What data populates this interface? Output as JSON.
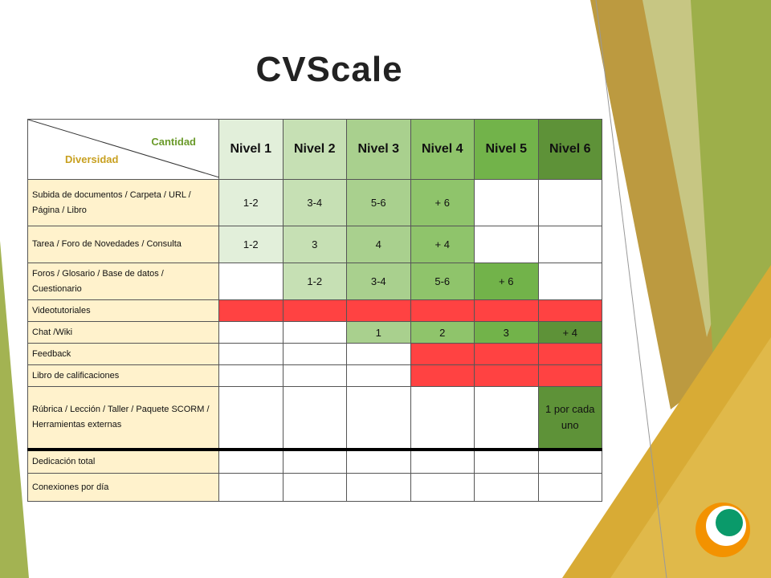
{
  "title": "CVScale",
  "table": {
    "corner": {
      "top": "Cantidad",
      "bottom": "Diversidad"
    },
    "columns": [
      "Nivel 1",
      "Nivel 2",
      "Nivel 3",
      "Nivel 4",
      "Nivel 5",
      "Nivel 6"
    ],
    "column_colors": [
      "#e2efda",
      "#c6e0b4",
      "#a9d08e",
      "#8fc46b",
      "#72b34a",
      "#5e9238"
    ],
    "rows": [
      {
        "label": "Subida de documentos / Carpeta / URL / Página / Libro",
        "cells": [
          "1-2",
          "3-4",
          "5-6",
          "+ 6",
          null,
          null
        ],
        "colors": [
          "#e2efda",
          "#c6e0b4",
          "#a9d08e",
          "#8fc46b",
          null,
          null
        ]
      },
      {
        "label": "Tarea / Foro de Novedades / Consulta",
        "cells": [
          "1-2",
          "3",
          "4",
          "+ 4",
          null,
          null
        ],
        "colors": [
          "#e2efda",
          "#c6e0b4",
          "#a9d08e",
          "#8fc46b",
          null,
          null
        ]
      },
      {
        "label": "Foros / Glosario / Base de datos / Cuestionario",
        "cells": [
          null,
          "1-2",
          "3-4",
          "5-6",
          "+ 6",
          null
        ],
        "colors": [
          null,
          "#c6e0b4",
          "#a9d08e",
          "#8fc46b",
          "#72b34a",
          null
        ]
      },
      {
        "label": "Videotutoriales",
        "cells": [
          null,
          null,
          null,
          null,
          null,
          null
        ],
        "colors": [
          "#ff4242",
          "#ff4242",
          "#ff4242",
          "#ff4242",
          "#ff4242",
          "#ff4242"
        ]
      },
      {
        "label": "Chat /Wiki",
        "cells": [
          null,
          null,
          "1",
          "2",
          "3",
          "+ 4"
        ],
        "colors": [
          null,
          null,
          "#a9d08e",
          "#8fc46b",
          "#72b34a",
          "#5e9238"
        ]
      },
      {
        "label": "Feedback",
        "cells": [
          null,
          null,
          null,
          null,
          null,
          null
        ],
        "colors": [
          null,
          null,
          null,
          "#ff4242",
          "#ff4242",
          "#ff4242"
        ]
      },
      {
        "label": "Libro de calificaciones",
        "cells": [
          null,
          null,
          null,
          null,
          null,
          null
        ],
        "colors": [
          null,
          null,
          null,
          "#ff4242",
          "#ff4242",
          "#ff4242"
        ]
      },
      {
        "label": "Rúbrica / Lección / Taller / Paquete SCORM / Herramientas externas",
        "cells": [
          null,
          null,
          null,
          null,
          null,
          "1 por cada uno"
        ],
        "colors": [
          null,
          null,
          null,
          null,
          null,
          "#5e9238"
        ]
      },
      {
        "label": "Dedicación total",
        "cells": [
          null,
          null,
          null,
          null,
          null,
          null
        ],
        "colors": [
          null,
          null,
          null,
          null,
          null,
          null
        ]
      },
      {
        "label": "Conexiones por día",
        "cells": [
          null,
          null,
          null,
          null,
          null,
          null
        ],
        "colors": [
          null,
          null,
          null,
          null,
          null,
          null
        ]
      }
    ]
  }
}
